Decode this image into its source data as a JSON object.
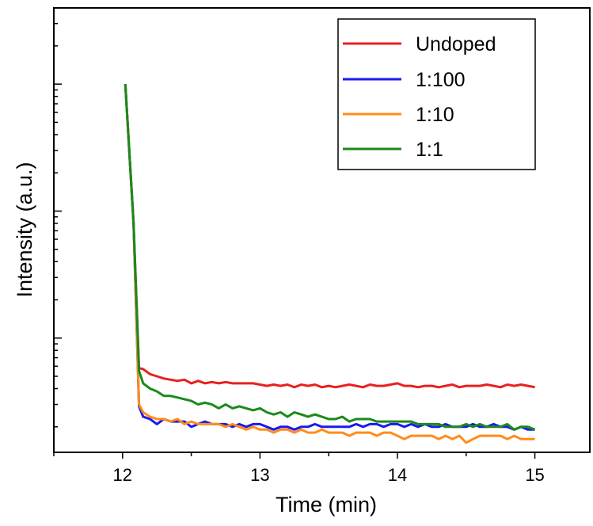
{
  "chart_data": {
    "type": "line",
    "title": "",
    "xlabel": "Time (min)",
    "ylabel": "Intensity (a.u.)",
    "xlim": [
      11.5,
      15.4
    ],
    "ylog": true,
    "ylim_decades": [
      -0.9,
      2.6
    ],
    "x_ticks": [
      {
        "value": 12,
        "label": "12"
      },
      {
        "value": 13,
        "label": "13"
      },
      {
        "value": 14,
        "label": "14"
      },
      {
        "value": 15,
        "label": "15"
      }
    ],
    "y_tick_labels_shown": false,
    "grid": false,
    "legend": {
      "position": "top-right"
    },
    "series": [
      {
        "name": "Undoped",
        "color": "#e8201f",
        "x": [
          12.02,
          12.08,
          12.12,
          12.15,
          12.2,
          12.25,
          12.3,
          12.35,
          12.4,
          12.45,
          12.5,
          12.55,
          12.6,
          12.65,
          12.7,
          12.75,
          12.8,
          12.85,
          12.9,
          12.95,
          13.0,
          13.05,
          13.1,
          13.15,
          13.2,
          13.25,
          13.3,
          13.35,
          13.4,
          13.45,
          13.5,
          13.55,
          13.6,
          13.65,
          13.7,
          13.75,
          13.8,
          13.85,
          13.9,
          13.95,
          14.0,
          14.05,
          14.1,
          14.15,
          14.2,
          14.25,
          14.3,
          14.35,
          14.4,
          14.45,
          14.5,
          14.55,
          14.6,
          14.65,
          14.7,
          14.75,
          14.8,
          14.85,
          14.9,
          14.95,
          15.0
        ],
        "y": [
          100,
          8,
          0.58,
          0.57,
          0.52,
          0.5,
          0.48,
          0.47,
          0.46,
          0.47,
          0.44,
          0.46,
          0.44,
          0.45,
          0.44,
          0.45,
          0.44,
          0.44,
          0.44,
          0.44,
          0.43,
          0.42,
          0.43,
          0.42,
          0.43,
          0.41,
          0.43,
          0.42,
          0.43,
          0.41,
          0.42,
          0.41,
          0.42,
          0.43,
          0.42,
          0.41,
          0.43,
          0.42,
          0.42,
          0.43,
          0.44,
          0.42,
          0.42,
          0.41,
          0.42,
          0.42,
          0.41,
          0.42,
          0.43,
          0.41,
          0.42,
          0.42,
          0.42,
          0.43,
          0.42,
          0.41,
          0.43,
          0.42,
          0.43,
          0.42,
          0.41
        ]
      },
      {
        "name": "1:100",
        "color": "#1a1aee",
        "x": [
          12.02,
          12.08,
          12.12,
          12.15,
          12.2,
          12.25,
          12.3,
          12.35,
          12.4,
          12.45,
          12.5,
          12.55,
          12.6,
          12.65,
          12.7,
          12.75,
          12.8,
          12.85,
          12.9,
          12.95,
          13.0,
          13.05,
          13.1,
          13.15,
          13.2,
          13.25,
          13.3,
          13.35,
          13.4,
          13.45,
          13.5,
          13.55,
          13.6,
          13.65,
          13.7,
          13.75,
          13.8,
          13.85,
          13.9,
          13.95,
          14.0,
          14.05,
          14.1,
          14.15,
          14.2,
          14.25,
          14.3,
          14.35,
          14.4,
          14.45,
          14.5,
          14.55,
          14.6,
          14.65,
          14.7,
          14.75,
          14.8,
          14.85,
          14.9,
          14.95,
          15.0
        ],
        "y": [
          100,
          8,
          0.29,
          0.24,
          0.23,
          0.21,
          0.23,
          0.22,
          0.22,
          0.22,
          0.2,
          0.21,
          0.22,
          0.21,
          0.21,
          0.21,
          0.2,
          0.21,
          0.2,
          0.21,
          0.21,
          0.2,
          0.19,
          0.2,
          0.2,
          0.19,
          0.2,
          0.2,
          0.21,
          0.2,
          0.2,
          0.2,
          0.2,
          0.2,
          0.21,
          0.2,
          0.21,
          0.21,
          0.2,
          0.21,
          0.21,
          0.2,
          0.21,
          0.2,
          0.21,
          0.2,
          0.2,
          0.21,
          0.2,
          0.2,
          0.2,
          0.21,
          0.2,
          0.2,
          0.21,
          0.2,
          0.2,
          0.19,
          0.2,
          0.19,
          0.19
        ]
      },
      {
        "name": "1:10",
        "color": "#ff8c1a",
        "x": [
          12.02,
          12.08,
          12.12,
          12.15,
          12.2,
          12.25,
          12.3,
          12.35,
          12.4,
          12.45,
          12.5,
          12.55,
          12.6,
          12.65,
          12.7,
          12.75,
          12.8,
          12.85,
          12.9,
          12.95,
          13.0,
          13.05,
          13.1,
          13.15,
          13.2,
          13.25,
          13.3,
          13.35,
          13.4,
          13.45,
          13.5,
          13.55,
          13.6,
          13.65,
          13.7,
          13.75,
          13.8,
          13.85,
          13.9,
          13.95,
          14.0,
          14.05,
          14.1,
          14.15,
          14.2,
          14.25,
          14.3,
          14.35,
          14.4,
          14.45,
          14.5,
          14.55,
          14.6,
          14.65,
          14.7,
          14.75,
          14.8,
          14.85,
          14.9,
          14.95,
          15.0
        ],
        "y": [
          100,
          8,
          0.3,
          0.26,
          0.24,
          0.23,
          0.23,
          0.22,
          0.23,
          0.21,
          0.22,
          0.21,
          0.21,
          0.21,
          0.21,
          0.2,
          0.21,
          0.2,
          0.19,
          0.2,
          0.19,
          0.19,
          0.18,
          0.19,
          0.19,
          0.18,
          0.19,
          0.18,
          0.18,
          0.19,
          0.18,
          0.18,
          0.18,
          0.17,
          0.18,
          0.18,
          0.18,
          0.17,
          0.18,
          0.18,
          0.17,
          0.16,
          0.17,
          0.17,
          0.17,
          0.17,
          0.16,
          0.17,
          0.16,
          0.17,
          0.15,
          0.16,
          0.17,
          0.17,
          0.17,
          0.17,
          0.16,
          0.17,
          0.16,
          0.16,
          0.16
        ]
      },
      {
        "name": "1:1",
        "color": "#1a8a1a",
        "x": [
          12.02,
          12.08,
          12.12,
          12.15,
          12.2,
          12.25,
          12.3,
          12.35,
          12.4,
          12.45,
          12.5,
          12.55,
          12.6,
          12.65,
          12.7,
          12.75,
          12.8,
          12.85,
          12.9,
          12.95,
          13.0,
          13.05,
          13.1,
          13.15,
          13.2,
          13.25,
          13.3,
          13.35,
          13.4,
          13.45,
          13.5,
          13.55,
          13.6,
          13.65,
          13.7,
          13.75,
          13.8,
          13.85,
          13.9,
          13.95,
          14.0,
          14.05,
          14.1,
          14.15,
          14.2,
          14.25,
          14.3,
          14.35,
          14.4,
          14.45,
          14.5,
          14.55,
          14.6,
          14.65,
          14.7,
          14.75,
          14.8,
          14.85,
          14.9,
          14.95,
          15.0
        ],
        "y": [
          100,
          8,
          0.55,
          0.44,
          0.4,
          0.38,
          0.35,
          0.35,
          0.34,
          0.33,
          0.32,
          0.3,
          0.31,
          0.3,
          0.28,
          0.3,
          0.28,
          0.29,
          0.28,
          0.27,
          0.28,
          0.26,
          0.25,
          0.26,
          0.24,
          0.26,
          0.25,
          0.24,
          0.25,
          0.24,
          0.23,
          0.23,
          0.24,
          0.22,
          0.23,
          0.23,
          0.23,
          0.22,
          0.22,
          0.22,
          0.22,
          0.22,
          0.22,
          0.21,
          0.21,
          0.21,
          0.21,
          0.2,
          0.2,
          0.2,
          0.21,
          0.2,
          0.21,
          0.2,
          0.2,
          0.2,
          0.21,
          0.19,
          0.2,
          0.2,
          0.19
        ]
      }
    ]
  }
}
